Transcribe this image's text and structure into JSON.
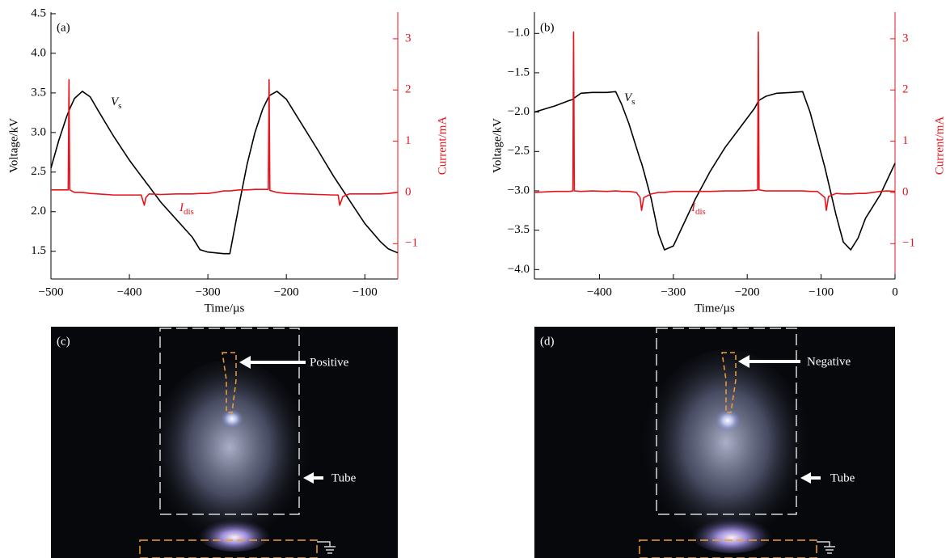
{
  "chart_data": [
    {
      "type": "line",
      "panel_label": "(a)",
      "xlabel": "Time/µs",
      "ylabel": "Voltage/kV",
      "y2label": "Current/mA",
      "y2color": "#e8141c",
      "xlim": [
        -500,
        -58
      ],
      "ylim": [
        1.15,
        4.52
      ],
      "y2lim": [
        -1.69,
        3.52
      ],
      "xticks": [
        {
          "value": -500,
          "label": "−500"
        },
        {
          "value": -400,
          "label": "−400"
        },
        {
          "value": -300,
          "label": "−300"
        },
        {
          "value": -200,
          "label": "−200"
        },
        {
          "value": -100,
          "label": "−100"
        }
      ],
      "yticks": [
        {
          "value": 1.5,
          "label": "1.5"
        },
        {
          "value": 2,
          "label": "2.0"
        },
        {
          "value": 2.5,
          "label": "2.5"
        },
        {
          "value": 3,
          "label": "3.0"
        },
        {
          "value": 3.5,
          "label": "3.5"
        },
        {
          "value": 4,
          "label": "4.0"
        },
        {
          "value": 4.5,
          "label": "4.5"
        }
      ],
      "y2ticks": [
        {
          "value": -1,
          "label": "−1"
        },
        0,
        1,
        2,
        3
      ],
      "x": [
        -500,
        -490,
        -480,
        -478,
        -477,
        -476,
        -470,
        -460,
        -450,
        -440,
        -420,
        -400,
        -385,
        -381,
        -379,
        -375,
        -360,
        -340,
        -320,
        -310,
        -300,
        -290,
        -280,
        -272,
        -260,
        -250,
        -240,
        -230,
        -223,
        -222,
        -221,
        -212,
        -200,
        -180,
        -160,
        -140,
        -134,
        -132,
        -128,
        -120,
        -100,
        -80,
        -70,
        -58
      ],
      "series": [
        {
          "name": "V",
          "subscript": "s",
          "color": "#000000",
          "values": [
            2.55,
            2.9,
            3.2,
            3.25,
            3.27,
            3.3,
            3.43,
            3.52,
            3.45,
            3.28,
            2.95,
            2.65,
            2.45,
            2.4,
            2.37,
            2.32,
            2.12,
            1.9,
            1.68,
            1.52,
            1.49,
            1.48,
            1.47,
            1.47,
            2.1,
            2.6,
            3.0,
            3.3,
            3.44,
            3.46,
            3.47,
            3.52,
            3.42,
            3.1,
            2.78,
            2.45,
            2.36,
            2.33,
            2.27,
            2.15,
            1.85,
            1.62,
            1.53,
            1.48
          ]
        },
        {
          "name": "I",
          "subscript": "dis",
          "color": "#e8141c",
          "axis": "y2",
          "values": [
            0.05,
            0.05,
            0.05,
            0.05,
            2.2,
            0.05,
            0,
            0,
            -0.02,
            -0.03,
            -0.05,
            -0.05,
            -0.05,
            -0.25,
            -0.1,
            -0.03,
            -0.04,
            -0.03,
            -0.03,
            -0.02,
            -0.02,
            0,
            0.03,
            0.03,
            0.05,
            0.05,
            0.06,
            0.06,
            0.06,
            2.2,
            0.04,
            0,
            -0.02,
            -0.03,
            -0.04,
            -0.05,
            -0.05,
            -0.25,
            -0.08,
            -0.03,
            -0.03,
            -0.03,
            -0.02,
            0
          ]
        }
      ]
    },
    {
      "type": "line",
      "panel_label": "(b)",
      "xlabel": "Time/µs",
      "ylabel": "Voltage/kV",
      "y2label": "Current/mA",
      "y2color": "#e8141c",
      "xlim": [
        -488,
        0
      ],
      "ylim": [
        -4.12,
        -0.73
      ],
      "y2lim": [
        -1.69,
        3.52
      ],
      "xticks": [
        {
          "value": -400,
          "label": "−400"
        },
        {
          "value": -300,
          "label": "−300"
        },
        {
          "value": -200,
          "label": "−200"
        },
        {
          "value": -100,
          "label": "−100"
        },
        0
      ],
      "yticks": [
        {
          "value": -4,
          "label": "−4.0"
        },
        {
          "value": -3.5,
          "label": "−3.5"
        },
        {
          "value": -3,
          "label": "−3.0"
        },
        {
          "value": -2.5,
          "label": "−2.5"
        },
        {
          "value": -2,
          "label": "−2.0"
        },
        {
          "value": -1.5,
          "label": "−1.5"
        },
        {
          "value": -1,
          "label": "−1.0"
        }
      ],
      "y2ticks": [
        {
          "value": -1,
          "label": "−1"
        },
        0,
        1,
        2,
        3
      ],
      "x": [
        -488,
        -460,
        -440,
        -436,
        -435,
        -434,
        -425,
        -410,
        -390,
        -378,
        -370,
        -360,
        -350,
        -345,
        -343,
        -340,
        -330,
        -320,
        -312,
        -300,
        -290,
        -270,
        -250,
        -230,
        -210,
        -190,
        -186,
        -185,
        -184,
        -175,
        -160,
        -140,
        -125,
        -115,
        -105,
        -95,
        -93,
        -90,
        -80,
        -70,
        -60,
        -50,
        -40,
        -20,
        -10,
        0
      ],
      "series": [
        {
          "name": "V",
          "subscript": "s",
          "color": "#000000",
          "values": [
            -2.0,
            -1.92,
            -1.85,
            -1.84,
            -1.83,
            -1.82,
            -1.76,
            -1.75,
            -1.75,
            -1.74,
            -1.9,
            -2.15,
            -2.45,
            -2.6,
            -2.65,
            -2.75,
            -3.1,
            -3.55,
            -3.75,
            -3.7,
            -3.5,
            -3.1,
            -2.75,
            -2.45,
            -2.2,
            -1.95,
            -1.88,
            -1.86,
            -1.85,
            -1.8,
            -1.76,
            -1.75,
            -1.74,
            -2.0,
            -2.35,
            -2.7,
            -2.78,
            -2.9,
            -3.3,
            -3.65,
            -3.75,
            -3.6,
            -3.35,
            -3.05,
            -2.85,
            -2.65
          ]
        },
        {
          "name": "I",
          "subscript": "dis",
          "color": "#e8141c",
          "axis": "y2",
          "values": [
            0,
            0.02,
            0.02,
            0.03,
            3.13,
            0.03,
            0.02,
            0.03,
            0.02,
            0.03,
            0.02,
            0.02,
            0,
            -0.1,
            -0.35,
            -0.1,
            -0.03,
            0,
            0,
            0.02,
            0.02,
            0.02,
            0.02,
            0.03,
            0.03,
            0.04,
            0.05,
            3.13,
            0.05,
            0.03,
            0.03,
            0.03,
            0.03,
            0.02,
            0.02,
            -0.1,
            -0.35,
            -0.08,
            -0.02,
            -0.03,
            -0.03,
            -0.02,
            -0.02,
            0.02,
            0.03,
            0.02
          ]
        }
      ]
    }
  ],
  "photos": [
    {
      "label": "(c)",
      "arrow_labels": [
        "Positive",
        "Tube"
      ]
    },
    {
      "label": "(d)",
      "arrow_labels": [
        "Negative",
        "Tube"
      ]
    }
  ]
}
